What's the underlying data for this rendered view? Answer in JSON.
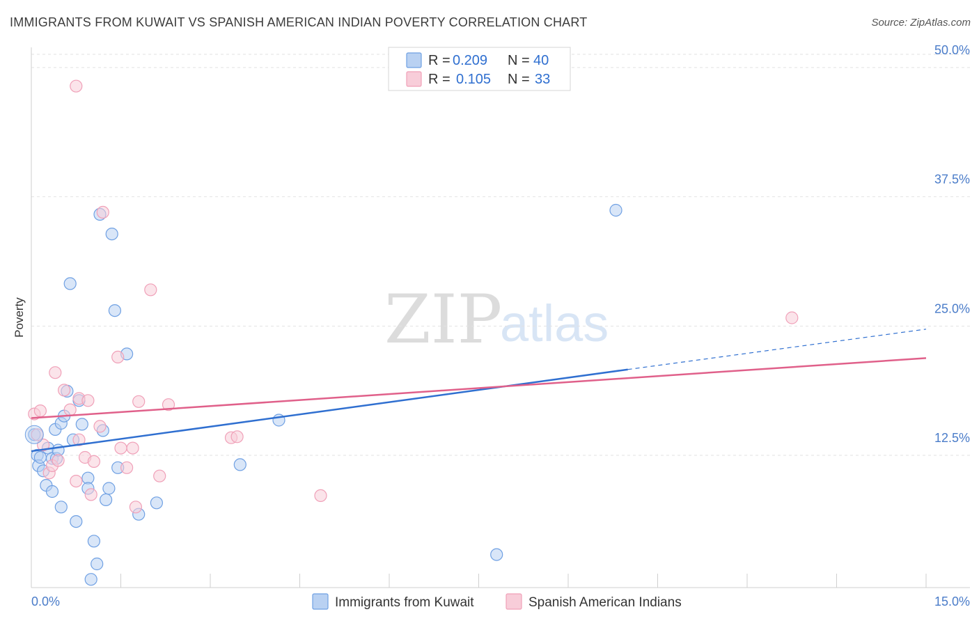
{
  "title": "IMMIGRANTS FROM KUWAIT VS SPANISH AMERICAN INDIAN POVERTY CORRELATION CHART",
  "source": "Source: ZipAtlas.com",
  "chart_data": {
    "type": "scatter",
    "title": "IMMIGRANTS FROM KUWAIT VS SPANISH AMERICAN INDIAN POVERTY CORRELATION CHART",
    "xlabel": "",
    "ylabel": "Poverty",
    "xlim": [
      0,
      15
    ],
    "ylim": [
      0,
      52
    ],
    "x_tick_labels": [
      "0.0%",
      "15.0%"
    ],
    "y_ticks": [
      12.5,
      25.0,
      37.5,
      50.0
    ],
    "y_tick_labels": [
      "12.5%",
      "25.0%",
      "37.5%",
      "50.0%"
    ],
    "grid": true,
    "legend_stats": [
      {
        "r_label": "R =",
        "r": "0.209",
        "n_label": "N =",
        "n": "40"
      },
      {
        "r_label": "R =",
        "r": "0.105",
        "n_label": "N =",
        "n": "33"
      }
    ],
    "series": [
      {
        "name": "Immigrants from Kuwait",
        "color": "#6fa0e3",
        "fill": "#b9d1f2",
        "trend": {
          "x0": 0,
          "y0": 12.9,
          "x1": 10.0,
          "y1": 20.8,
          "dashed_to_x": 15,
          "dashed_to_y": 24.7,
          "color": "#2f6fd0"
        },
        "points": [
          [
            0.05,
            14.5
          ],
          [
            0.1,
            12.5
          ],
          [
            0.12,
            11.5
          ],
          [
            0.15,
            12.3
          ],
          [
            0.2,
            11.0
          ],
          [
            0.25,
            9.6
          ],
          [
            0.28,
            13.2
          ],
          [
            0.35,
            12.2
          ],
          [
            0.35,
            9.0
          ],
          [
            0.4,
            15.0
          ],
          [
            0.42,
            12.2
          ],
          [
            0.45,
            13.0
          ],
          [
            0.5,
            15.6
          ],
          [
            0.5,
            7.5
          ],
          [
            0.55,
            16.3
          ],
          [
            0.6,
            18.7
          ],
          [
            0.65,
            29.1
          ],
          [
            0.7,
            14.0
          ],
          [
            0.75,
            6.1
          ],
          [
            0.8,
            17.8
          ],
          [
            0.85,
            15.5
          ],
          [
            0.95,
            10.3
          ],
          [
            0.95,
            9.3
          ],
          [
            1.05,
            4.2
          ],
          [
            1.1,
            2.0
          ],
          [
            1.15,
            35.8
          ],
          [
            1.2,
            14.9
          ],
          [
            1.25,
            8.2
          ],
          [
            1.3,
            9.3
          ],
          [
            1.35,
            33.9
          ],
          [
            1.4,
            26.5
          ],
          [
            1.45,
            11.3
          ],
          [
            1.6,
            22.3
          ],
          [
            1.8,
            6.8
          ],
          [
            2.1,
            7.9
          ],
          [
            3.5,
            11.6
          ],
          [
            4.15,
            15.9
          ],
          [
            7.8,
            2.9
          ],
          [
            9.8,
            36.2
          ],
          [
            1.0,
            0.5
          ]
        ]
      },
      {
        "name": "Spanish American Indians",
        "color": "#f0a0b8",
        "fill": "#f8cdd9",
        "trend": {
          "x0": 0,
          "y0": 16.1,
          "x1": 15,
          "y1": 21.9,
          "color": "#e0608a"
        },
        "points": [
          [
            0.05,
            16.5
          ],
          [
            0.1,
            14.5
          ],
          [
            0.15,
            16.8
          ],
          [
            0.2,
            13.5
          ],
          [
            0.3,
            10.8
          ],
          [
            0.35,
            11.5
          ],
          [
            0.4,
            20.5
          ],
          [
            0.45,
            12.0
          ],
          [
            0.55,
            18.8
          ],
          [
            0.65,
            16.9
          ],
          [
            0.75,
            10.0
          ],
          [
            0.8,
            14.0
          ],
          [
            0.8,
            18.0
          ],
          [
            0.9,
            12.3
          ],
          [
            0.95,
            17.8
          ],
          [
            1.0,
            8.7
          ],
          [
            1.05,
            11.9
          ],
          [
            1.15,
            15.3
          ],
          [
            1.2,
            36.0
          ],
          [
            1.45,
            22.0
          ],
          [
            1.5,
            13.2
          ],
          [
            1.6,
            11.3
          ],
          [
            1.7,
            13.2
          ],
          [
            1.75,
            7.5
          ],
          [
            1.8,
            17.7
          ],
          [
            2.0,
            28.5
          ],
          [
            2.15,
            10.5
          ],
          [
            2.3,
            17.4
          ],
          [
            3.35,
            14.2
          ],
          [
            3.45,
            14.3
          ],
          [
            4.85,
            8.6
          ],
          [
            12.75,
            25.8
          ],
          [
            0.75,
            48.2
          ]
        ]
      }
    ]
  }
}
